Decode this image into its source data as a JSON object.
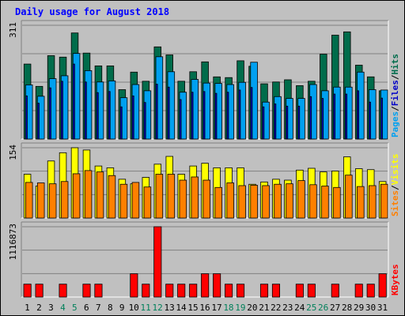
{
  "chart_data": {
    "type": "bar",
    "title": "Daily usage for August 2018",
    "categories": [
      "1",
      "2",
      "3",
      "4",
      "5",
      "6",
      "7",
      "8",
      "9",
      "10",
      "11",
      "12",
      "13",
      "14",
      "15",
      "16",
      "17",
      "18",
      "19",
      "20",
      "21",
      "22",
      "23",
      "24",
      "25",
      "26",
      "27",
      "28",
      "29",
      "30",
      "31"
    ],
    "weekend_days": [
      "4",
      "5",
      "11",
      "12",
      "18",
      "19",
      "25",
      "26"
    ],
    "panels": [
      {
        "id": "hits",
        "max_label": "311",
        "ylim": [
          0,
          311
        ],
        "series": [
          {
            "name": "Hits",
            "color": "#006c4b",
            "values": [
              205,
              144,
              228,
              224,
              290,
              235,
              200,
              200,
              135,
              183,
              158,
              252,
              230,
              158,
              184,
              211,
              170,
              168,
              214,
              199,
              151,
              156,
              162,
              146,
              158,
              232,
              284,
              293,
              202,
              170,
              132
            ]
          },
          {
            "name": "Files",
            "color": "#00a0f0",
            "values": [
              148,
              117,
              165,
              173,
              234,
              187,
              156,
              159,
              113,
              149,
              132,
              225,
              184,
              128,
              163,
              153,
              152,
              149,
              155,
              210,
              101,
              116,
              111,
              111,
              149,
              132,
              142,
              142,
              183,
              135,
              134
            ]
          },
          {
            "name": "Pages",
            "color": "#0000c8",
            "values": [
              118,
              98,
              140,
              158,
              205,
              156,
              127,
              130,
              88,
              118,
              100,
              150,
              142,
              108,
              128,
              130,
              125,
              128,
              134,
              141,
              88,
              96,
              90,
              90,
              116,
              111,
              123,
              123,
              132,
              101,
              112
            ]
          }
        ],
        "legend": [
          "Pages",
          "Files",
          "Hits"
        ]
      },
      {
        "id": "visits",
        "max_label": "154",
        "ylim": [
          0,
          154
        ],
        "series": [
          {
            "name": "Visits",
            "color": "#ffff00",
            "values": [
              96,
              70,
              125,
              143,
              154,
              149,
              114,
              110,
              85,
              75,
              89,
              118,
              135,
              96,
              114,
              120,
              110,
              110,
              110,
              74,
              79,
              85,
              83,
              105,
              109,
              101,
              103,
              134,
              108,
              106,
              80
            ]
          },
          {
            "name": "Sites",
            "color": "#ff8000",
            "values": [
              78,
              77,
              75,
              80,
              97,
              104,
              101,
              93,
              74,
              78,
              68,
              96,
              96,
              83,
              90,
              83,
              67,
              77,
              71,
              72,
              71,
              74,
              75,
              82,
              73,
              70,
              67,
              94,
              69,
              71,
              74
            ]
          }
        ],
        "legend": [
          "Sites",
          "Visits"
        ]
      },
      {
        "id": "kbytes",
        "max_label": "1116873",
        "ylim": [
          0,
          1116873
        ],
        "series": [
          {
            "name": "KBytes",
            "color": "#ff0000",
            "values": [
              205000,
              205000,
              0,
              205000,
              0,
              205000,
              205000,
              0,
              0,
              370000,
              205000,
              1116873,
              205000,
              205000,
              205000,
              370000,
              370000,
              205000,
              205000,
              0,
              205000,
              205000,
              0,
              205000,
              205000,
              0,
              205000,
              0,
              205000,
              205000,
              370000
            ]
          }
        ],
        "legend": [
          "KBytes"
        ]
      }
    ],
    "grid": true
  }
}
